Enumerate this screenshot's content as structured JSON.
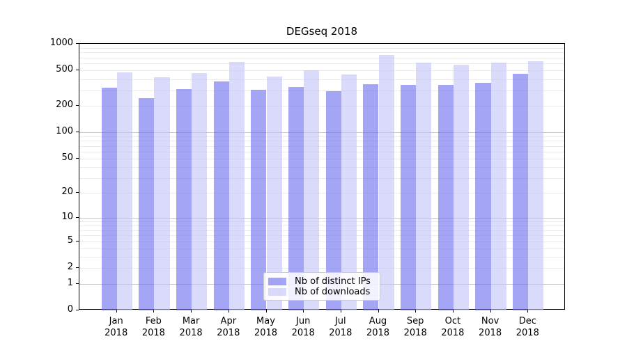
{
  "chart_data": {
    "type": "bar",
    "title": "DEGseq 2018",
    "categories": [
      "Jan",
      "Feb",
      "Mar",
      "Apr",
      "May",
      "Jun",
      "Jul",
      "Aug",
      "Sep",
      "Oct",
      "Nov",
      "Dec"
    ],
    "year_label": "2018",
    "series": [
      {
        "name": "Nb of distinct IPs",
        "color": "#6969ee",
        "color_css": "rgba(105,105,238,0.6)",
        "values": [
          320,
          246,
          310,
          375,
          305,
          328,
          295,
          350,
          343,
          345,
          366,
          458
        ]
      },
      {
        "name": "Nb of downloads",
        "color": "#c1c1f7",
        "color_css": "rgba(193,193,247,0.6)",
        "values": [
          480,
          420,
          470,
          630,
          430,
          500,
          455,
          750,
          612,
          580,
          620,
          632
        ]
      }
    ],
    "y_ticks": [
      0,
      1,
      2,
      5,
      10,
      20,
      50,
      100,
      200,
      500,
      1000
    ],
    "y_scale": "log10(value+1)",
    "ylim": [
      0,
      1000
    ],
    "grid": "horizontal-minor-and-major",
    "grid_minor_color": "#ebebeb",
    "grid_major_color": "#c6c6c6",
    "legend_position": "bottom-center",
    "axis_color": "#000000",
    "background_color": "#ffffff"
  }
}
